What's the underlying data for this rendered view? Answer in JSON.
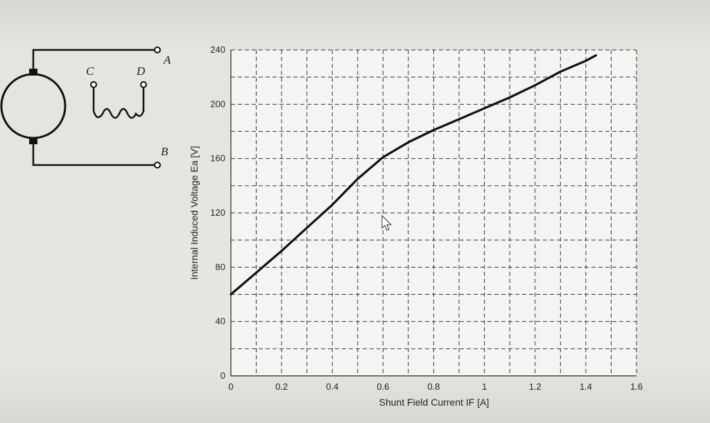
{
  "circuit": {
    "terminal_a": "A",
    "terminal_b": "B",
    "terminal_c": "C",
    "terminal_d": "D"
  },
  "chart_data": {
    "type": "line",
    "xlabel": "Shunt Field Current IF [A]",
    "ylabel": "Internal Induced Voltage Ea [V]",
    "xlim": [
      0,
      1.6
    ],
    "ylim": [
      0,
      240
    ],
    "x_ticks": [
      0,
      0.2,
      0.4,
      0.6,
      0.8,
      1,
      1.2,
      1.4,
      1.6
    ],
    "x_tick_labels": [
      "0",
      "0.2",
      "0.4",
      "0.6",
      "0.8",
      "1",
      "1.2",
      "1.4",
      "1.6"
    ],
    "y_ticks": [
      0,
      40,
      80,
      120,
      160,
      200,
      240
    ],
    "y_tick_labels": [
      "0",
      "40",
      "80",
      "120",
      "160",
      "200",
      "240"
    ],
    "grid": true,
    "grid_style": "dashed",
    "line_color": "#111111",
    "series": [
      {
        "x": [
          0,
          0.1,
          0.2,
          0.3,
          0.4,
          0.5,
          0.6,
          0.7,
          0.8,
          0.9,
          1.0,
          1.1,
          1.2,
          1.3,
          1.4,
          1.44
        ],
        "y": [
          60,
          76,
          92,
          109,
          126,
          145,
          161,
          172,
          181,
          189,
          197,
          205,
          214,
          224,
          232,
          236
        ]
      }
    ]
  }
}
